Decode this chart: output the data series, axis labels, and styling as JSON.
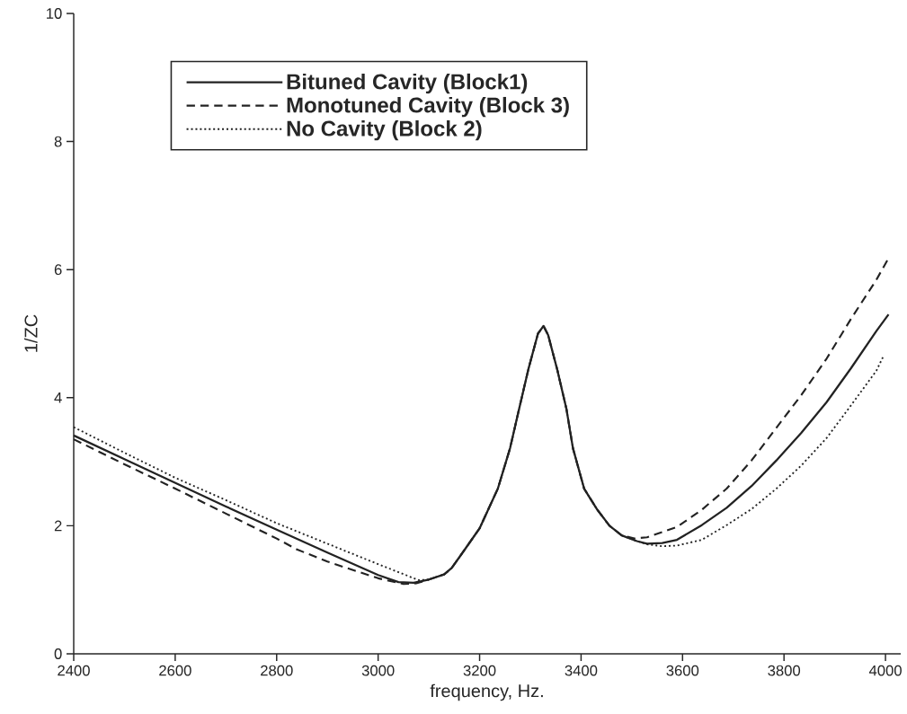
{
  "chart_data": {
    "type": "line",
    "xlabel": "frequency, Hz.",
    "ylabel": "1/ZC",
    "xlim": [
      2400,
      4030
    ],
    "ylim": [
      0,
      10
    ],
    "xticks": [
      2400,
      2600,
      2800,
      3000,
      3200,
      3400,
      3600,
      3800,
      4000
    ],
    "yticks": [
      0,
      2,
      4,
      6,
      8,
      10
    ],
    "legend": "top left",
    "series": [
      {
        "name": "Bituned Cavity (Block1)",
        "color": "#222222",
        "line_style": "solid",
        "x": [
          2400,
          2500,
          2600,
          2700,
          2800,
          2900,
          3000,
          3040,
          3070,
          3100,
          3130,
          3145,
          3170,
          3200,
          3236,
          3260,
          3278,
          3296,
          3315,
          3326,
          3335,
          3353,
          3371,
          3384,
          3406,
          3432,
          3456,
          3480,
          3510,
          3530,
          3560,
          3589,
          3638,
          3687,
          3736,
          3785,
          3834,
          3884,
          3932,
          3982,
          4006
        ],
        "values": [
          3.41,
          3.04,
          2.67,
          2.3,
          1.94,
          1.58,
          1.23,
          1.12,
          1.11,
          1.16,
          1.24,
          1.34,
          1.62,
          1.96,
          2.58,
          3.21,
          3.83,
          4.44,
          5.0,
          5.12,
          4.98,
          4.44,
          3.83,
          3.21,
          2.58,
          2.25,
          2.0,
          1.85,
          1.76,
          1.72,
          1.73,
          1.78,
          2.01,
          2.28,
          2.62,
          3.02,
          3.45,
          3.93,
          4.46,
          5.04,
          5.3
        ]
      },
      {
        "name": "Monotuned Cavity (Block 3)",
        "color": "#222222",
        "line_style": "dashed",
        "x": [
          2400,
          2500,
          2600,
          2700,
          2800,
          2840,
          2900,
          3000,
          3050,
          3075,
          3100,
          3130,
          3145,
          3170,
          3200,
          3236,
          3260,
          3278,
          3296,
          3315,
          3326,
          3335,
          3353,
          3371,
          3384,
          3406,
          3432,
          3456,
          3480,
          3505,
          3530,
          3589,
          3638,
          3687,
          3736,
          3785,
          3834,
          3884,
          3932,
          3982,
          4004
        ],
        "values": [
          3.35,
          2.96,
          2.58,
          2.19,
          1.8,
          1.63,
          1.44,
          1.18,
          1.09,
          1.1,
          1.16,
          1.24,
          1.34,
          1.62,
          1.96,
          2.58,
          3.21,
          3.83,
          4.44,
          5.0,
          5.12,
          4.98,
          4.44,
          3.83,
          3.21,
          2.58,
          2.25,
          2.0,
          1.85,
          1.8,
          1.82,
          1.98,
          2.25,
          2.58,
          3.02,
          3.53,
          4.04,
          4.61,
          5.23,
          5.84,
          6.15
        ]
      },
      {
        "name": "No Cavity (Block 2)",
        "color": "#222222",
        "line_style": "dotted",
        "x": [
          2400,
          2500,
          2600,
          2700,
          2800,
          2900,
          3000,
          3080,
          3100,
          3130,
          3145,
          3170,
          3200,
          3236,
          3260,
          3278,
          3296,
          3315,
          3326,
          3335,
          3353,
          3371,
          3384,
          3406,
          3432,
          3456,
          3480,
          3510,
          3530,
          3560,
          3589,
          3638,
          3687,
          3736,
          3785,
          3834,
          3884,
          3932,
          3982,
          3996
        ],
        "values": [
          3.54,
          3.14,
          2.75,
          2.4,
          2.04,
          1.72,
          1.4,
          1.15,
          1.16,
          1.24,
          1.34,
          1.62,
          1.96,
          2.58,
          3.21,
          3.83,
          4.44,
          5.0,
          5.12,
          4.98,
          4.44,
          3.83,
          3.21,
          2.58,
          2.25,
          2.0,
          1.85,
          1.76,
          1.71,
          1.68,
          1.69,
          1.78,
          2.01,
          2.26,
          2.58,
          2.94,
          3.37,
          3.88,
          4.42,
          4.65
        ]
      }
    ]
  }
}
